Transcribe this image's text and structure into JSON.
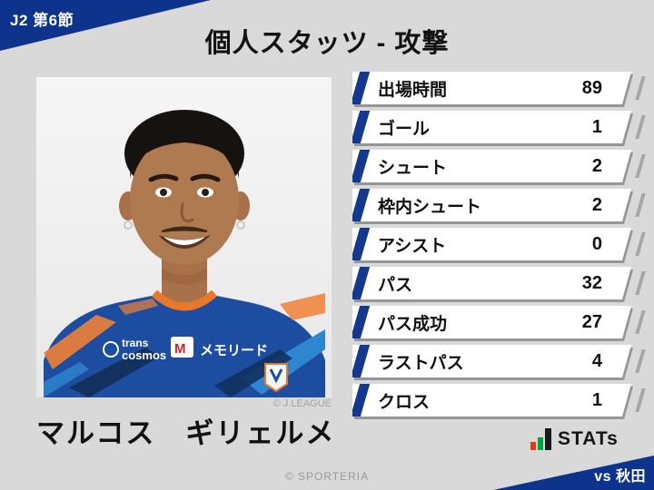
{
  "page": {
    "background": "#d9d9d9",
    "accent_blue": "#0e338c"
  },
  "badge": {
    "label": "J2 第6節"
  },
  "title": "個人スタッツ - 攻撃",
  "player": {
    "name": "マルコス　ギリェルメ",
    "photo_credit": "© J.LEAGUE"
  },
  "stats": [
    {
      "label": "出場時間",
      "value": "89"
    },
    {
      "label": "ゴール",
      "value": "1"
    },
    {
      "label": "シュート",
      "value": "2"
    },
    {
      "label": "枠内シュート",
      "value": "2"
    },
    {
      "label": "アシスト",
      "value": "0"
    },
    {
      "label": "パス",
      "value": "32"
    },
    {
      "label": "パス成功",
      "value": "27"
    },
    {
      "label": "ラストパス",
      "value": "4"
    },
    {
      "label": "クロス",
      "value": "1"
    }
  ],
  "stats_logo": {
    "text": "STATs",
    "bar_colors": [
      "#e8380d",
      "#00a63c",
      "#1a1a1a"
    ]
  },
  "footer": {
    "credit": "© SPORTERIA"
  },
  "opponent_badge": {
    "label": "vs 秋田"
  },
  "chart_data": {
    "type": "table",
    "title": "個人スタッツ - 攻撃",
    "subject": "マルコス　ギリェルメ",
    "context": {
      "competition": "J2 第6節",
      "opponent": "vs 秋田"
    },
    "categories": [
      "出場時間",
      "ゴール",
      "シュート",
      "枠内シュート",
      "アシスト",
      "パス",
      "パス成功",
      "ラストパス",
      "クロス"
    ],
    "values": [
      89,
      1,
      2,
      2,
      0,
      32,
      27,
      4,
      1
    ]
  }
}
